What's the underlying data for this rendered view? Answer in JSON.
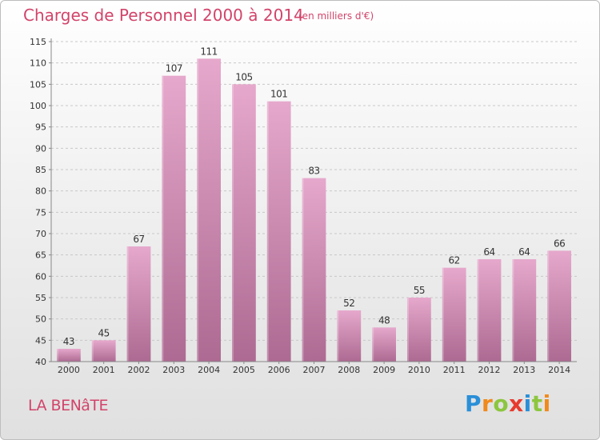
{
  "title": "Charges de Personnel 2000 à 2014",
  "subtitle": "(en milliers d'€)",
  "footer_label": "LA BENâTE",
  "logo": {
    "letters": [
      {
        "ch": "P",
        "color": "#2a8fd8"
      },
      {
        "ch": "r",
        "color": "#f08a1c"
      },
      {
        "ch": "o",
        "color": "#8cc63f"
      },
      {
        "ch": "x",
        "color": "#e8392e"
      },
      {
        "ch": "i",
        "color": "#2a8fd8"
      },
      {
        "ch": "t",
        "color": "#8cc63f"
      },
      {
        "ch": "i",
        "color": "#f08a1c"
      }
    ]
  },
  "colors": {
    "bar_top": "#e6a8cc",
    "bar_bottom": "#ad6a92",
    "grid": "#c8c8c8",
    "axis_text": "#333333",
    "accent": "#d2446a"
  },
  "chart_data": {
    "type": "bar",
    "categories": [
      "2000",
      "2001",
      "2002",
      "2003",
      "2004",
      "2005",
      "2006",
      "2007",
      "2008",
      "2009",
      "2010",
      "2011",
      "2012",
      "2013",
      "2014"
    ],
    "values": [
      43,
      45,
      67,
      107,
      111,
      105,
      101,
      83,
      52,
      48,
      55,
      62,
      64,
      64,
      66
    ],
    "ylim": [
      40,
      115
    ],
    "yticks": [
      40,
      45,
      50,
      55,
      60,
      65,
      70,
      75,
      80,
      85,
      90,
      95,
      100,
      105,
      110,
      115
    ],
    "grid": true,
    "grid_style": "dashed-horizontal"
  }
}
